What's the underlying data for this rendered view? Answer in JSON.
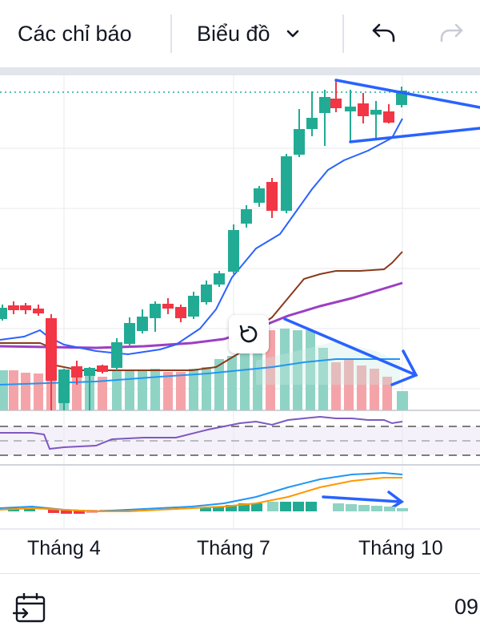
{
  "toolbar": {
    "indicators_label": "Các chỉ báo",
    "chart_type_label": "Biểu đồ",
    "chevron_icon": "chevron-down-icon",
    "undo_icon": "undo-icon",
    "redo_icon": "redo-icon"
  },
  "xaxis": {
    "labels": [
      "Tháng 4",
      "Tháng 7",
      "Tháng 10"
    ]
  },
  "bottom": {
    "date_text": "09",
    "calendar_icon": "calendar-goto-icon"
  },
  "colors": {
    "up": "#22ab94",
    "down": "#f23645",
    "vol_up": "#8fd3c5",
    "vol_down": "#f4a4a8",
    "annotation": "#2962ff",
    "ma_purple": "#9c3fc3",
    "ma_brown": "#8b3a1a",
    "ma_blue": "#2962ff",
    "vol_ma": "#2196f3",
    "macd": "#2196f3",
    "signal": "#ff9800",
    "rsi": "#7e57c2"
  },
  "reset_icon": "reset-chart-icon"
}
